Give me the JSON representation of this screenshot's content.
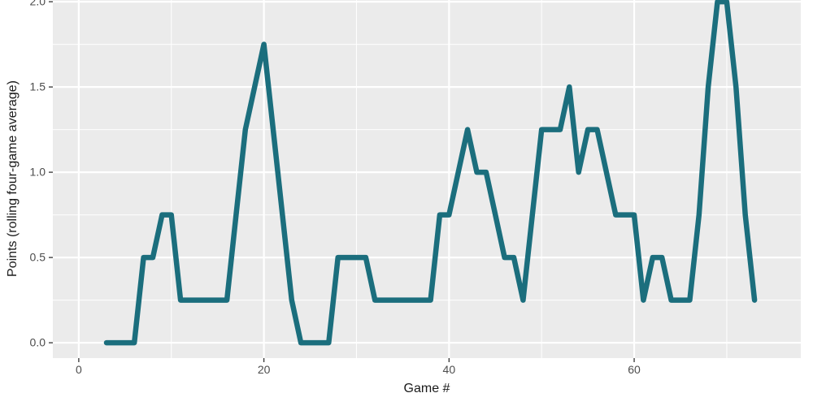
{
  "chart_data": {
    "type": "line",
    "title": "",
    "xlabel": "Game #",
    "ylabel": "Points (rolling four-game average)",
    "xlim": [
      -2.8,
      78
    ],
    "ylim": [
      -0.09,
      2.01
    ],
    "xticks": [
      0,
      20,
      40,
      60
    ],
    "xticks_minor": [
      10,
      30,
      50,
      70
    ],
    "ytick_labels": [
      "0.0",
      "0.5",
      "1.0",
      "1.5",
      "2.0"
    ],
    "ytick_values": [
      0,
      0.5,
      1.0,
      1.5,
      2.0
    ],
    "yticks_minor": [
      0.25,
      0.75,
      1.25,
      1.75
    ],
    "grid": true,
    "legend": false,
    "style": {
      "panel_background": "#EBEBEB",
      "grid_color": "#FFFFFF",
      "line_color": "#1B6E7D",
      "line_width": 6.5,
      "tick_color": "#333333",
      "tick_label_color": "#4D4D4D"
    },
    "series": [
      {
        "name": "rolling-four-game-average",
        "x": [
          3,
          4,
          5,
          6,
          7,
          8,
          9,
          10,
          11,
          12,
          13,
          14,
          15,
          16,
          17,
          18,
          19,
          20,
          21,
          22,
          23,
          24,
          25,
          26,
          27,
          28,
          29,
          30,
          31,
          32,
          33,
          34,
          35,
          36,
          37,
          38,
          39,
          40,
          41,
          42,
          43,
          44,
          45,
          46,
          47,
          48,
          49,
          50,
          51,
          52,
          53,
          54,
          55,
          56,
          57,
          58,
          59,
          60,
          61,
          62,
          63,
          64,
          65,
          66,
          67,
          68,
          69,
          70,
          71,
          72,
          73
        ],
        "y": [
          0,
          0,
          0,
          0,
          0.5,
          0.5,
          0.75,
          0.75,
          0.25,
          0.25,
          0.25,
          0.25,
          0.25,
          0.25,
          0.75,
          1.25,
          1.5,
          1.75,
          1.25,
          0.75,
          0.25,
          0,
          0,
          0,
          0,
          0.5,
          0.5,
          0.5,
          0.5,
          0.25,
          0.25,
          0.25,
          0.25,
          0.25,
          0.25,
          0.25,
          0.75,
          0.75,
          1.0,
          1.25,
          1.0,
          1.0,
          0.75,
          0.5,
          0.5,
          0.25,
          0.75,
          1.25,
          1.25,
          1.25,
          1.5,
          1.0,
          1.25,
          1.25,
          1.0,
          0.75,
          0.75,
          0.75,
          0.25,
          0.5,
          0.5,
          0.25,
          0.25,
          0.25,
          0.75,
          1.5,
          2.0,
          2.0,
          1.5,
          0.75,
          0.25
        ]
      }
    ]
  }
}
